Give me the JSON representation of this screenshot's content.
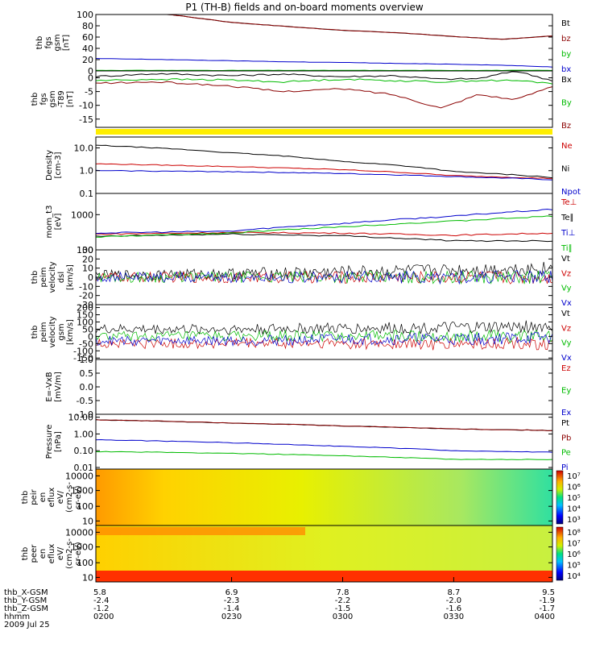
{
  "title": "P1 (TH-B) fields and on-board moments overview",
  "chart_data": [
    {
      "id": "fgs_gsm",
      "type": "line",
      "ylabel": [
        "thb",
        "fgs",
        "gsm",
        "[nT]"
      ],
      "yticks": [
        "100",
        "80",
        "60",
        "40",
        "20",
        "0"
      ],
      "ylim": [
        0,
        100
      ],
      "series": [
        {
          "name": "Bt",
          "color": "#000000",
          "x": [
            5.8,
            6.4,
            6.9,
            7.4,
            7.8,
            8.3,
            8.7,
            9.1,
            9.5
          ],
          "values": [
            112,
            100,
            86,
            78,
            72,
            67,
            61,
            56,
            62
          ]
        },
        {
          "name": "bz",
          "color": "#8b0000",
          "x": [
            5.8,
            6.4,
            6.9,
            7.4,
            7.8,
            8.3,
            8.7,
            9.1,
            9.5
          ],
          "values": [
            112,
            100,
            86,
            78,
            72,
            67,
            61,
            56,
            62
          ]
        },
        {
          "name": "by",
          "color": "#00bb00",
          "x": [
            5.8,
            6.4,
            6.9,
            7.4,
            7.8,
            8.3,
            8.7,
            9.1,
            9.5
          ],
          "values": [
            1,
            1,
            1,
            1,
            1,
            1,
            1,
            1,
            1
          ]
        },
        {
          "name": "bx",
          "color": "#0000cc",
          "x": [
            5.8,
            6.4,
            6.9,
            7.4,
            7.8,
            8.3,
            8.7,
            9.1,
            9.5
          ],
          "values": [
            22,
            20,
            18,
            16,
            15,
            13,
            12,
            10,
            7
          ]
        }
      ]
    },
    {
      "id": "fgs_gsm_minus",
      "type": "line",
      "ylabel": [
        "thb",
        "fgs",
        "gsm",
        "-T89",
        "[nT]"
      ],
      "yticks": [
        "0",
        "-5",
        "-10",
        "-15"
      ],
      "ylim": [
        -18,
        2.5
      ],
      "series": [
        {
          "name": "Bx",
          "color": "#000000",
          "x": [
            5.8,
            6.3,
            6.9,
            7.3,
            7.8,
            8.2,
            8.6,
            8.9,
            9.2,
            9.5
          ],
          "values": [
            0.5,
            1.5,
            0.8,
            1.3,
            0.4,
            0.8,
            -0.5,
            -0.3,
            2.5,
            -1
          ]
        },
        {
          "name": "By",
          "color": "#00bb00",
          "x": [
            5.8,
            6.3,
            6.9,
            7.3,
            7.8,
            8.2,
            8.6,
            8.9,
            9.2,
            9.5
          ],
          "values": [
            -1,
            -0.5,
            -0.8,
            -1.5,
            -0.5,
            -1,
            -1.5,
            -1,
            -1,
            -2
          ]
        },
        {
          "name": "Bz",
          "color": "#8b0000",
          "x": [
            5.8,
            6.3,
            6.9,
            7.3,
            7.8,
            8.2,
            8.6,
            8.9,
            9.2,
            9.5
          ],
          "values": [
            -2,
            -1.5,
            -3,
            -5,
            -4,
            -6,
            -11,
            -6,
            -8,
            -3
          ]
        }
      ]
    },
    {
      "id": "density",
      "type": "line",
      "yscale": "log",
      "ylabel": [
        "Density",
        "[cm-3]"
      ],
      "yticks": [
        "10.0",
        "1.0",
        "0.1"
      ],
      "ylim": [
        0.1,
        30
      ],
      "series": [
        {
          "name": "Ne",
          "color": "#cc0000",
          "x": [
            5.8,
            6.9,
            7.8,
            8.7,
            9.5
          ],
          "values": [
            2.0,
            1.5,
            1.1,
            0.6,
            0.45
          ]
        },
        {
          "name": "Ni",
          "color": "#000000",
          "x": [
            5.8,
            6.9,
            7.8,
            8.7,
            9.5
          ],
          "values": [
            13,
            6,
            2.5,
            0.9,
            0.5
          ]
        },
        {
          "name": "Npot",
          "color": "#0000cc",
          "x": [
            5.8,
            6.9,
            7.8,
            8.7,
            9.5
          ],
          "values": [
            1.0,
            0.9,
            0.75,
            0.55,
            0.4
          ]
        }
      ]
    },
    {
      "id": "mom_t",
      "type": "line",
      "yscale": "log",
      "ylabel": [
        "mom_t3",
        "[eV]"
      ],
      "yticks": [
        "1000",
        "100"
      ],
      "ylim": [
        100,
        4000
      ],
      "series": [
        {
          "name": "Te⊥",
          "color": "#cc0000",
          "x": [
            5.8,
            6.9,
            7.8,
            8.7,
            9.5
          ],
          "values": [
            280,
            310,
            300,
            260,
            300
          ]
        },
        {
          "name": "Te∥",
          "color": "#000000",
          "x": [
            5.8,
            6.9,
            7.8,
            8.7,
            9.5
          ],
          "values": [
            240,
            280,
            250,
            180,
            180
          ]
        },
        {
          "name": "Ti⊥",
          "color": "#0000cc",
          "x": [
            5.8,
            6.9,
            7.8,
            8.7,
            9.5
          ],
          "values": [
            300,
            340,
            560,
            900,
            1400
          ]
        },
        {
          "name": "Ti∥",
          "color": "#00bb00",
          "x": [
            5.8,
            6.9,
            7.8,
            8.7,
            9.5
          ],
          "values": [
            230,
            300,
            450,
            650,
            900
          ]
        }
      ]
    },
    {
      "id": "peim_velocity_dsl",
      "type": "line",
      "ylabel": [
        "thb",
        "peim",
        "velocity",
        "dsl",
        "[km/s]"
      ],
      "yticks": [
        "30",
        "20",
        "10",
        "0",
        "-10",
        "-20",
        "-30"
      ],
      "ylim": [
        -30,
        30
      ],
      "series": [
        {
          "name": "Vt",
          "color": "#000000",
          "x": [
            5.8,
            6.9,
            7.8,
            8.7,
            9.5
          ],
          "values": [
            2,
            4,
            6,
            8,
            10
          ]
        },
        {
          "name": "Vz",
          "color": "#cc0000",
          "x": [
            5.8,
            6.9,
            7.8,
            8.7,
            9.5
          ],
          "values": [
            0,
            0,
            0,
            0,
            0
          ]
        },
        {
          "name": "Vy",
          "color": "#00bb00",
          "x": [
            5.8,
            6.9,
            7.8,
            8.7,
            9.5
          ],
          "values": [
            0,
            0,
            0,
            0,
            0
          ]
        },
        {
          "name": "Vx",
          "color": "#0000cc",
          "x": [
            5.8,
            6.9,
            7.8,
            8.7,
            9.5
          ],
          "values": [
            0,
            0,
            0,
            0,
            0
          ]
        }
      ]
    },
    {
      "id": "peim_velocity_gsm",
      "type": "line",
      "ylabel": [
        "thb",
        "peim",
        "velocity",
        "gsm",
        "[km/s]"
      ],
      "yticks": [
        "200",
        "150",
        "100",
        "50",
        "0",
        "-50",
        "-100",
        "-150"
      ],
      "ylim": [
        -160,
        220
      ],
      "series": [
        {
          "name": "Vt",
          "color": "#000000",
          "x": [
            5.8,
            6.9,
            7.8,
            8.7,
            9.5
          ],
          "values": [
            50,
            50,
            55,
            60,
            70
          ]
        },
        {
          "name": "Vz",
          "color": "#cc0000",
          "x": [
            5.8,
            6.9,
            7.8,
            8.7,
            9.5
          ],
          "values": [
            -50,
            -50,
            -50,
            -55,
            -50
          ]
        },
        {
          "name": "Vy",
          "color": "#00bb00",
          "x": [
            5.8,
            6.9,
            7.8,
            8.7,
            9.5
          ],
          "values": [
            0,
            0,
            5,
            0,
            0
          ]
        },
        {
          "name": "Vx",
          "color": "#0000cc",
          "x": [
            5.8,
            6.9,
            7.8,
            8.7,
            9.5
          ],
          "values": [
            -30,
            -30,
            -20,
            -20,
            -10
          ]
        }
      ]
    },
    {
      "id": "e_vxb",
      "type": "line",
      "ylabel": [
        "E=-VxB",
        "[mV/m]"
      ],
      "yticks": [
        "1.0",
        "0.5",
        "0.0",
        "-0.5",
        "-1.0"
      ],
      "ylim": [
        -1,
        1
      ],
      "series": [
        {
          "name": "Ez",
          "color": "#cc0000",
          "values": []
        },
        {
          "name": "Ey",
          "color": "#00bb00",
          "values": []
        },
        {
          "name": "Ex",
          "color": "#0000cc",
          "values": []
        }
      ]
    },
    {
      "id": "pressure",
      "type": "line",
      "yscale": "log",
      "ylabel": [
        "Pressure",
        "[nPa]"
      ],
      "yticks": [
        "10.00",
        "1.00",
        "0.10",
        "0.01"
      ],
      "ylim": [
        0.008,
        15
      ],
      "series": [
        {
          "name": "Pt",
          "color": "#000000",
          "x": [
            5.8,
            6.9,
            7.8,
            8.7,
            9.5
          ],
          "values": [
            7,
            4.5,
            3,
            2,
            1.6
          ]
        },
        {
          "name": "Pb",
          "color": "#8b0000",
          "x": [
            5.8,
            6.9,
            7.8,
            8.7,
            9.5
          ],
          "values": [
            7,
            4.5,
            3,
            2,
            1.6
          ]
        },
        {
          "name": "Pe",
          "color": "#00bb00",
          "x": [
            5.8,
            6.9,
            7.8,
            8.7,
            9.5
          ],
          "values": [
            0.09,
            0.07,
            0.05,
            0.03,
            0.03
          ]
        },
        {
          "name": "Pi",
          "color": "#0000cc",
          "x": [
            5.8,
            6.9,
            7.8,
            8.7,
            9.5
          ],
          "values": [
            0.45,
            0.3,
            0.18,
            0.1,
            0.08
          ]
        }
      ]
    },
    {
      "id": "peir_en_eflux",
      "type": "heatmap",
      "ylabel": [
        "thb",
        "peir",
        "en",
        "eflux",
        "eV/",
        "(cm2-s-",
        "sr-eV)"
      ],
      "yticks": [
        "10000",
        "1000",
        "100",
        "10"
      ],
      "colorbar_ticks": [
        "10⁷",
        "10⁶",
        "10⁵",
        "10⁴",
        "10³"
      ]
    },
    {
      "id": "peer_en_eflux",
      "type": "heatmap",
      "ylabel": [
        "thb",
        "peer",
        "en",
        "eflux",
        "eV/",
        "(cm2-s-",
        "sr-eV)"
      ],
      "yticks": [
        "10000",
        "1000",
        "100",
        "10"
      ],
      "colorbar_ticks": [
        "10⁸",
        "10⁷",
        "10⁶",
        "10⁵",
        "10⁴"
      ]
    }
  ],
  "xaxis": {
    "rows": [
      "thb_X-GSM",
      "thb_Y-GSM",
      "thb_Z-GSM",
      "hhmm"
    ],
    "date": "2009 Jul 25",
    "ticks": [
      [
        "5.8",
        "-2.4",
        "-1.2",
        "0200"
      ],
      [
        "6.9",
        "-2.3",
        "-1.4",
        "0230"
      ],
      [
        "7.8",
        "-2.2",
        "-1.5",
        "0300"
      ],
      [
        "8.7",
        "-2.0",
        "-1.6",
        "0330"
      ],
      [
        "9.5",
        "-1.9",
        "-1.7",
        "0400"
      ]
    ]
  }
}
